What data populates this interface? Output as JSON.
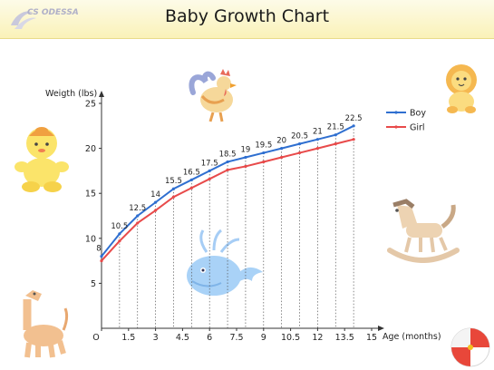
{
  "header": {
    "title": "Baby Growth Chart",
    "logo_text": "CS ODESSA"
  },
  "colors": {
    "boy": "#2f6fd0",
    "girl": "#e84a4a",
    "axis": "#333333",
    "header_bg": "#fbf4c2"
  },
  "decorations": [
    "rooster-icon",
    "lion-icon",
    "baby-icon",
    "rocking-horse-icon",
    "whale-icon",
    "giraffe-icon",
    "beach-ball-icon"
  ],
  "chart_data": {
    "type": "line",
    "xlabel": "Age (months)",
    "ylabel": "Weigth (lbs)",
    "xlim": [
      0,
      15
    ],
    "ylim": [
      0,
      25
    ],
    "xticks": [
      "O",
      "1.5",
      "3",
      "4.5",
      "6",
      "7.5",
      "9",
      "10.5",
      "12",
      "13.5",
      "15"
    ],
    "yticks": [
      "5",
      "10",
      "15",
      "20",
      "25"
    ],
    "x": [
      0,
      1,
      2,
      3,
      4,
      5,
      6,
      7,
      8,
      9,
      10,
      11,
      12,
      13,
      14
    ],
    "series": [
      {
        "name": "Boy",
        "values": [
          8,
          10.5,
          12.5,
          14,
          15.5,
          16.5,
          17.5,
          18.5,
          19,
          19.5,
          20,
          20.5,
          21,
          21.5,
          22.5
        ],
        "labels": [
          "8",
          "10.5",
          "12.5",
          "14",
          "15.5",
          "16.5",
          "17.5",
          "18.5",
          "19",
          "19.5",
          "20",
          "20.5",
          "21",
          "21.5",
          "22.5"
        ]
      },
      {
        "name": "Girl",
        "values": [
          7.5,
          9.7,
          11.7,
          13.1,
          14.6,
          15.6,
          16.6,
          17.6,
          18.0,
          18.5,
          19.0,
          19.5,
          20.0,
          20.5,
          21.0
        ]
      }
    ],
    "legend_position": "top-right",
    "grid": "vertical dotted drop lines"
  }
}
